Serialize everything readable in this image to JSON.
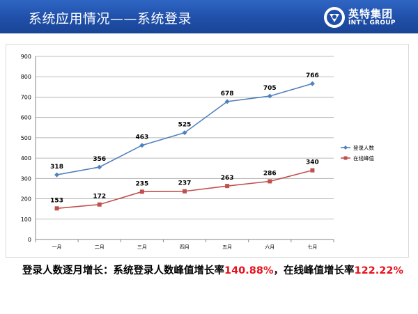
{
  "header": {
    "title": "系统应用情况——系统登录",
    "logo_cn": "英特集团",
    "logo_en": "INT'L GROUP"
  },
  "colors": {
    "header_blue": "#1f4fa8",
    "series_login": "#4f81bd",
    "series_peak": "#c0504d",
    "highlight": "#e8121d"
  },
  "chart_data": {
    "type": "line",
    "categories": [
      "一月",
      "二月",
      "三月",
      "四月",
      "五月",
      "六月",
      "七月"
    ],
    "series": [
      {
        "name": "登录人数",
        "values": [
          318,
          356,
          463,
          525,
          678,
          705,
          766
        ],
        "color": "#4f81bd",
        "marker": "diamond"
      },
      {
        "name": "在线峰值",
        "values": [
          153,
          172,
          235,
          237,
          263,
          286,
          340
        ],
        "color": "#c0504d",
        "marker": "square"
      }
    ],
    "ylim": [
      0,
      900
    ],
    "yticks": [
      0,
      100,
      200,
      300,
      400,
      500,
      600,
      700,
      800,
      900
    ],
    "grid": true,
    "legend": "right",
    "data_labels": true
  },
  "summary": {
    "text1": "登录人数逐月增长：系统登录人数峰值增长率",
    "value1": "140.88%",
    "text2": "，在线峰值增长率",
    "value2": "122.22%"
  }
}
